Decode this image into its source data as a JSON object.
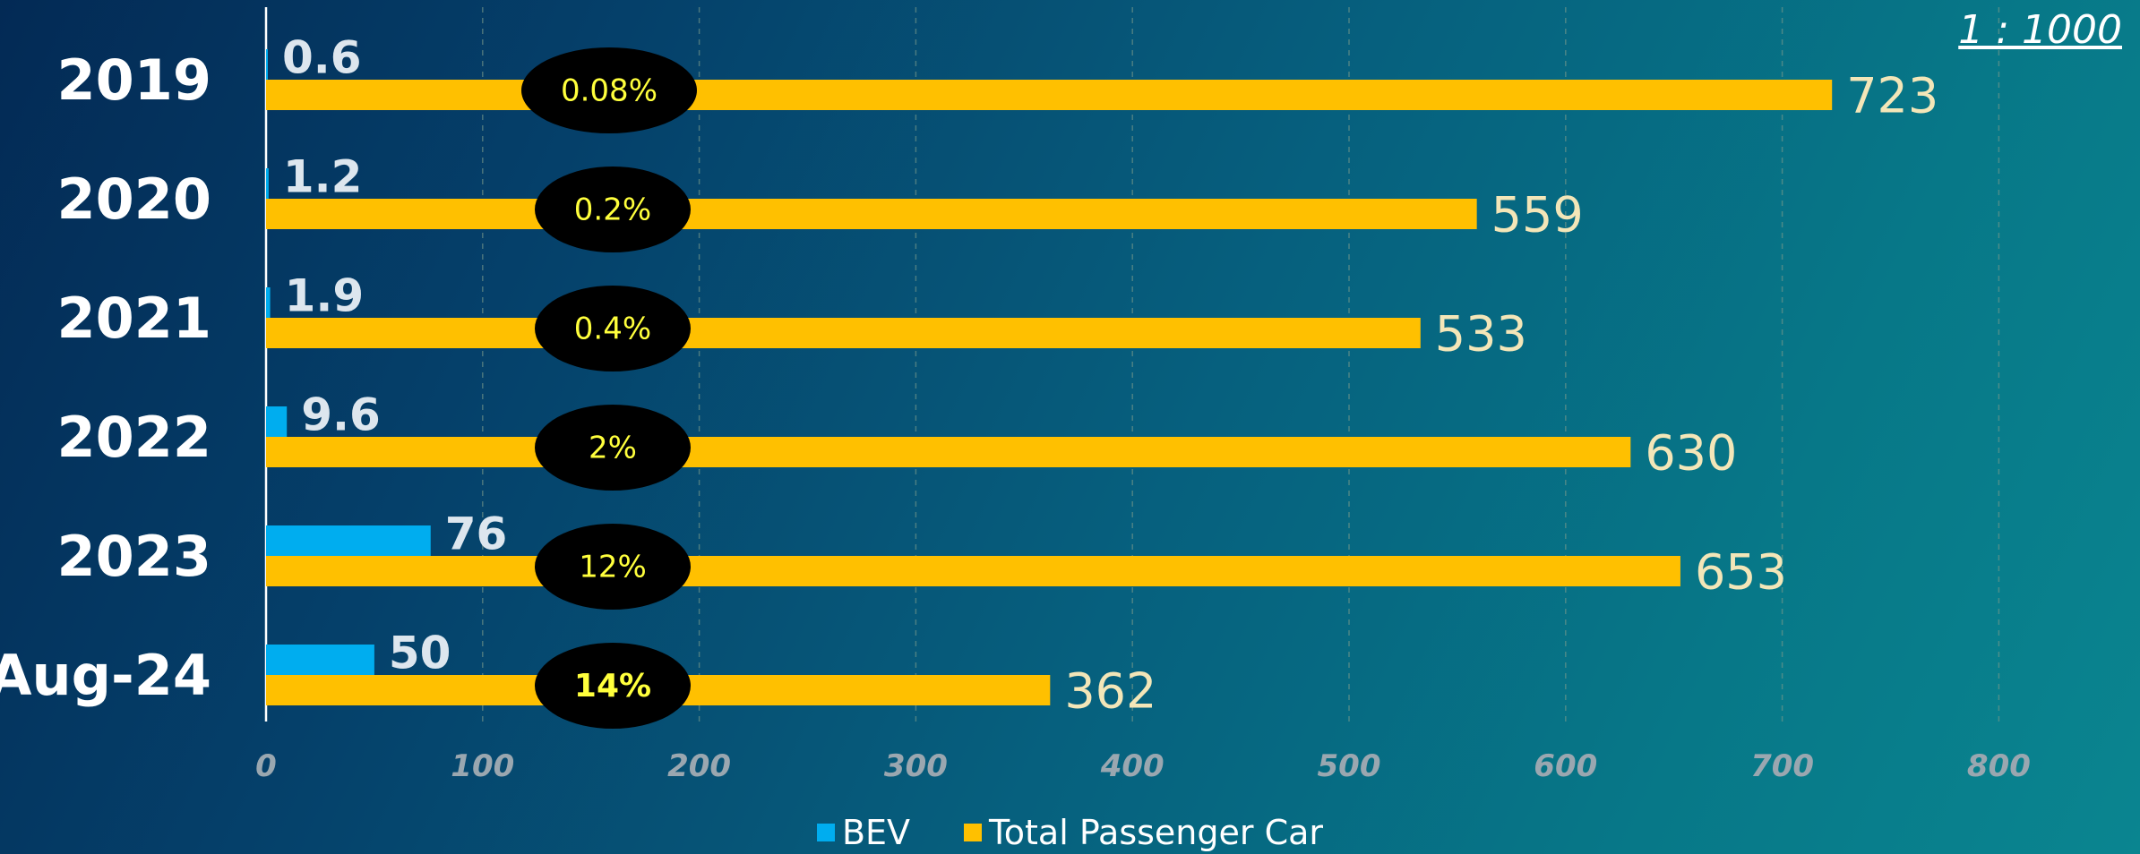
{
  "scale_note": "1 : 1000",
  "colors": {
    "bev": "#00adef",
    "total": "#ffc000",
    "pct_bubble": "#000000",
    "pct_text": "#ffff3c"
  },
  "chart_data": {
    "type": "bar",
    "orientation": "horizontal",
    "categories": [
      "2019",
      "2020",
      "2021",
      "2022",
      "2023",
      "Aug-24"
    ],
    "series": [
      {
        "name": "BEV",
        "values": [
          0.6,
          1.2,
          1.9,
          9.6,
          76,
          50
        ],
        "labels": [
          "0.6",
          "1.2",
          "1.9",
          "9.6",
          "76",
          "50"
        ]
      },
      {
        "name": "Total Passenger Car",
        "values": [
          723,
          559,
          533,
          630,
          653,
          362
        ],
        "labels": [
          "723",
          "559",
          "533",
          "630",
          "653",
          "362"
        ]
      }
    ],
    "annotations": [
      "0.08%",
      "0.2%",
      "0.4%",
      "2%",
      "12%",
      "14%"
    ],
    "xlim": [
      0,
      800
    ],
    "xticks": [
      0,
      100,
      200,
      300,
      400,
      500,
      600,
      700,
      800
    ],
    "grid": true,
    "legend_position": "bottom"
  }
}
